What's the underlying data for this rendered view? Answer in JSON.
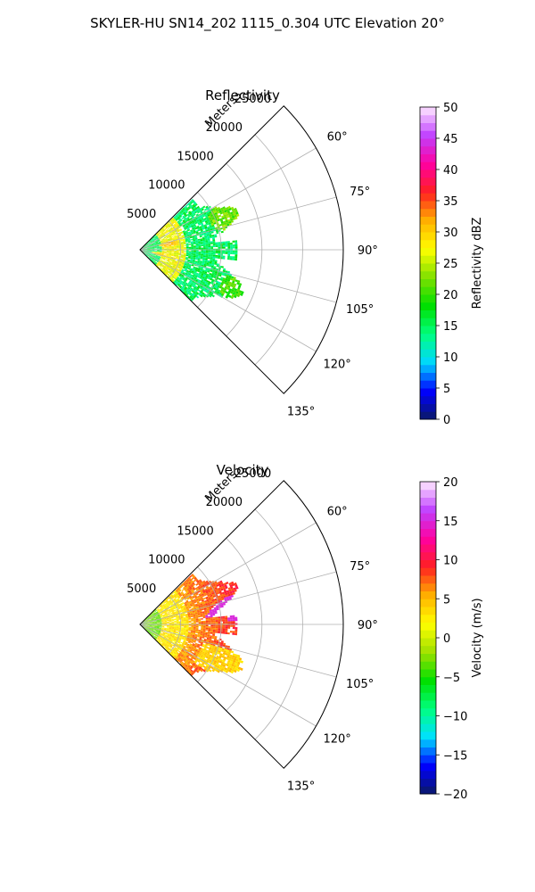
{
  "figure": {
    "title": "SKYLER-HU  SN14_202  1115_0.304 UTC Elevation 20°"
  },
  "chart_data": [
    {
      "type": "heatmap",
      "title": "Reflectivity",
      "projection": "polar-sector",
      "radial_axis": {
        "label": "Meters",
        "ticks": [
          5000,
          10000,
          15000,
          20000,
          25000
        ],
        "range": [
          0,
          25000
        ]
      },
      "angular_axis": {
        "ticks": [
          "60°",
          "75°",
          "90°",
          "105°",
          "120°",
          "135°"
        ],
        "range_deg": [
          45,
          135
        ]
      },
      "grid": true,
      "colorbar": {
        "label": "Reflectivity dBZ",
        "range": [
          0,
          50
        ],
        "ticks": [
          "0",
          "5",
          "10",
          "15",
          "20",
          "25",
          "30",
          "35",
          "40",
          "45",
          "50"
        ],
        "stops": [
          "#0b1a66",
          "#0000ff",
          "#00d8ff",
          "#00ff80",
          "#00e000",
          "#7fe000",
          "#ffff00",
          "#ffb000",
          "#ff2020",
          "#ff00a0",
          "#c040ff",
          "#ffe8ff"
        ]
      },
      "field": {
        "data_extent_m": 16000,
        "features": [
          {
            "kind": "background",
            "value": 15
          },
          {
            "kind": "band",
            "range_m": [
              2500,
              5500
            ],
            "value": 27
          },
          {
            "kind": "peak",
            "azimuth_deg": 78,
            "range_m": 3500,
            "value": 33
          },
          {
            "kind": "peak",
            "azimuth_deg": 102,
            "range_m": 2500,
            "value": 31
          },
          {
            "kind": "lobe",
            "azimuth_deg": 68,
            "range_m": 12000,
            "value": 22
          },
          {
            "kind": "lobe",
            "azimuth_deg": 112,
            "range_m": 13500,
            "value": 20
          }
        ]
      }
    },
    {
      "type": "heatmap",
      "title": "Velocity",
      "projection": "polar-sector",
      "radial_axis": {
        "label": "Meters",
        "ticks": [
          5000,
          10000,
          15000,
          20000,
          25000
        ],
        "range": [
          0,
          25000
        ]
      },
      "angular_axis": {
        "ticks": [
          "60°",
          "75°",
          "90°",
          "105°",
          "120°",
          "135°"
        ],
        "range_deg": [
          45,
          135
        ]
      },
      "grid": true,
      "colorbar": {
        "label": "Velocity (m/s)",
        "range": [
          -20,
          20
        ],
        "ticks": [
          "−20",
          "−15",
          "−10",
          "−5",
          "0",
          "5",
          "10",
          "15",
          "20"
        ],
        "stops": [
          "#0b1a66",
          "#0000ff",
          "#00e0ff",
          "#00ff80",
          "#00e000",
          "#a0e000",
          "#ffff00",
          "#ffb000",
          "#ff2020",
          "#ff00a0",
          "#c040ff",
          "#ffe8ff"
        ]
      },
      "field": {
        "data_extent_m": 16000,
        "features": [
          {
            "kind": "near-range",
            "range_m": [
              0,
              2500
            ],
            "value": -3
          },
          {
            "kind": "band",
            "range_m": [
              2500,
              6000
            ],
            "value": 3
          },
          {
            "kind": "gradient",
            "range_m": [
              6000,
              15500
            ],
            "value_near": 6,
            "value_far": 11
          },
          {
            "kind": "edge",
            "azimuth_deg": 80,
            "range_m": 15000,
            "value": 15
          },
          {
            "kind": "lobe",
            "azimuth_deg": 115,
            "range_m": 13000,
            "value": 4
          }
        ]
      }
    }
  ]
}
